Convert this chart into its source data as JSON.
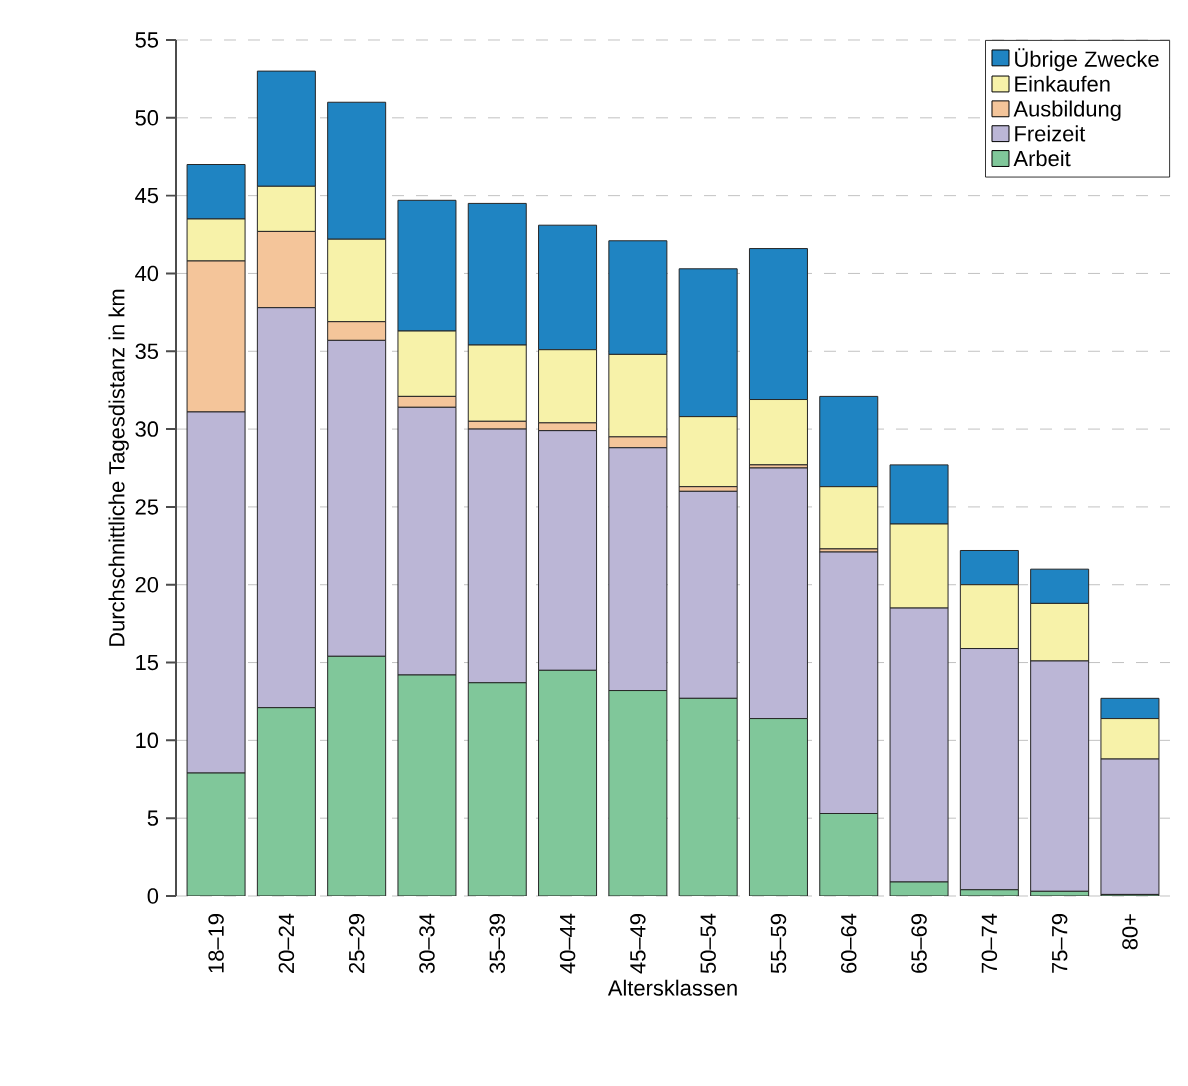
{
  "chart_data": {
    "type": "bar",
    "stacked": true,
    "xlabel": "Altersklassen",
    "ylabel": "Durchschnittliche Tagesdistanz in km",
    "categories": [
      "18–19",
      "20–24",
      "25–29",
      "30–34",
      "35–39",
      "40–44",
      "45–49",
      "50–54",
      "55–59",
      "60–64",
      "65–69",
      "70–74",
      "75–79",
      "80+"
    ],
    "series": [
      {
        "name": "Arbeit",
        "color": "#80c79a",
        "values": [
          7.9,
          12.1,
          15.4,
          14.2,
          13.7,
          14.5,
          13.2,
          12.7,
          11.4,
          5.3,
          0.9,
          0.4,
          0.3,
          0.1
        ]
      },
      {
        "name": "Freizeit",
        "color": "#bbb6d6",
        "values": [
          23.2,
          25.7,
          20.3,
          17.2,
          16.3,
          15.4,
          15.6,
          13.3,
          16.1,
          16.8,
          17.6,
          15.5,
          14.8,
          8.7
        ]
      },
      {
        "name": "Ausbildung",
        "color": "#f4c59a",
        "values": [
          9.7,
          4.9,
          1.2,
          0.7,
          0.5,
          0.5,
          0.7,
          0.3,
          0.2,
          0.2,
          0,
          0,
          0,
          0
        ]
      },
      {
        "name": "Einkaufen",
        "color": "#f7f2a9",
        "values": [
          2.7,
          2.9,
          5.3,
          4.2,
          4.9,
          4.7,
          5.3,
          4.5,
          4.2,
          4.0,
          5.4,
          4.1,
          3.7,
          2.6
        ]
      },
      {
        "name": "Übrige Zwecke",
        "color": "#1f84c2",
        "values": [
          3.5,
          7.4,
          8.8,
          8.4,
          9.1,
          8.0,
          7.3,
          9.5,
          9.7,
          5.8,
          3.8,
          2.2,
          2.2,
          1.3
        ]
      }
    ],
    "ylim": [
      0,
      55
    ],
    "yticks": [
      0,
      5,
      10,
      15,
      20,
      25,
      30,
      35,
      40,
      45,
      50,
      55
    ],
    "grid": "y",
    "legend": "top right"
  }
}
